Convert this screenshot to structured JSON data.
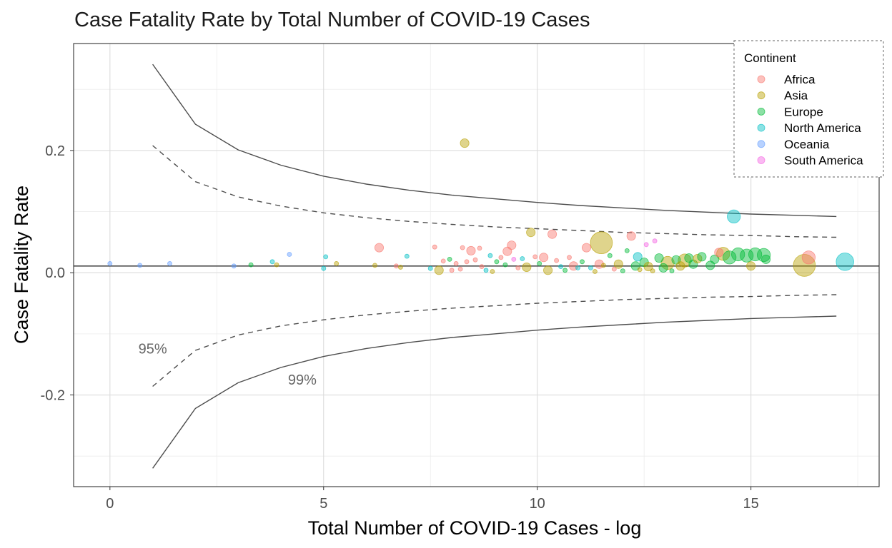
{
  "chart_data": {
    "type": "scatter",
    "title": "Case Fatality Rate by Total Number of COVID-19 Cases",
    "xlabel": "Total Number of COVID-19 Cases - log",
    "ylabel": "Case Fatality Rate",
    "xlim": [
      -0.85,
      18.0
    ],
    "ylim": [
      -0.35,
      0.375
    ],
    "x_ticks": [
      0,
      5,
      10,
      15
    ],
    "x_tick_labels": [
      "0",
      "5",
      "10",
      "15"
    ],
    "y_ticks": [
      -0.2,
      0.0,
      0.2
    ],
    "y_tick_labels": [
      "-0.2",
      "0.0",
      "0.2"
    ],
    "grid": true,
    "legend": {
      "title": "Continent",
      "position": "top-right",
      "entries": [
        {
          "name": "Africa",
          "color": "#F8766D"
        },
        {
          "name": "Asia",
          "color": "#B79F00"
        },
        {
          "name": "Europe",
          "color": "#00BA38"
        },
        {
          "name": "North America",
          "color": "#00BFC4"
        },
        {
          "name": "Oceania",
          "color": "#619CFF"
        },
        {
          "name": "South America",
          "color": "#F564E3"
        }
      ]
    },
    "reference_line": {
      "y": 0.011
    },
    "funnel": {
      "x": [
        1,
        2,
        3,
        4,
        5,
        6,
        7,
        8,
        9,
        10,
        11,
        12,
        13,
        14,
        15,
        16,
        17
      ],
      "upper_99": [
        0.341,
        0.243,
        0.201,
        0.176,
        0.158,
        0.145,
        0.135,
        0.127,
        0.121,
        0.115,
        0.11,
        0.106,
        0.102,
        0.099,
        0.096,
        0.094,
        0.092
      ],
      "lower_99": [
        -0.32,
        -0.222,
        -0.18,
        -0.155,
        -0.137,
        -0.124,
        -0.114,
        -0.106,
        -0.1,
        -0.094,
        -0.089,
        -0.085,
        -0.081,
        -0.078,
        -0.075,
        -0.073,
        -0.071
      ],
      "upper_95": [
        0.208,
        0.149,
        0.124,
        0.109,
        0.098,
        0.09,
        0.084,
        0.079,
        0.075,
        0.072,
        0.069,
        0.066,
        0.064,
        0.062,
        0.061,
        0.059,
        0.058
      ],
      "lower_95": [
        -0.186,
        -0.127,
        -0.102,
        -0.087,
        -0.077,
        -0.069,
        -0.063,
        -0.058,
        -0.054,
        -0.05,
        -0.047,
        -0.044,
        -0.042,
        -0.04,
        -0.039,
        -0.037,
        -0.036
      ]
    },
    "annotations": [
      {
        "text": "95%",
        "x": 1.0,
        "y": -0.132
      },
      {
        "text": "99%",
        "x": 4.5,
        "y": -0.183
      }
    ],
    "points": [
      {
        "x": 0.0,
        "y": 0.015,
        "continent": "Oceania",
        "size": 1
      },
      {
        "x": 0.7,
        "y": 0.012,
        "continent": "Oceania",
        "size": 1
      },
      {
        "x": 1.4,
        "y": 0.015,
        "continent": "Oceania",
        "size": 1
      },
      {
        "x": 2.9,
        "y": 0.011,
        "continent": "Oceania",
        "size": 1
      },
      {
        "x": 3.3,
        "y": 0.013,
        "continent": "Europe",
        "size": 1
      },
      {
        "x": 3.8,
        "y": 0.018,
        "continent": "North America",
        "size": 1
      },
      {
        "x": 3.9,
        "y": 0.013,
        "continent": "Asia",
        "size": 1
      },
      {
        "x": 4.2,
        "y": 0.03,
        "continent": "Oceania",
        "size": 1
      },
      {
        "x": 5.0,
        "y": 0.007,
        "continent": "North America",
        "size": 1
      },
      {
        "x": 5.05,
        "y": 0.026,
        "continent": "North America",
        "size": 1
      },
      {
        "x": 5.3,
        "y": 0.015,
        "continent": "Asia",
        "size": 1
      },
      {
        "x": 6.2,
        "y": 0.012,
        "continent": "Asia",
        "size": 1
      },
      {
        "x": 6.3,
        "y": 0.041,
        "continent": "Africa",
        "size": 2
      },
      {
        "x": 6.7,
        "y": 0.011,
        "continent": "Africa",
        "size": 1
      },
      {
        "x": 6.8,
        "y": 0.009,
        "continent": "Asia",
        "size": 1
      },
      {
        "x": 6.95,
        "y": 0.027,
        "continent": "North America",
        "size": 1
      },
      {
        "x": 7.5,
        "y": 0.007,
        "continent": "North America",
        "size": 1
      },
      {
        "x": 7.6,
        "y": 0.042,
        "continent": "Africa",
        "size": 1
      },
      {
        "x": 7.7,
        "y": 0.004,
        "continent": "Asia",
        "size": 2
      },
      {
        "x": 7.8,
        "y": 0.019,
        "continent": "Africa",
        "size": 1
      },
      {
        "x": 7.95,
        "y": 0.022,
        "continent": "Europe",
        "size": 1
      },
      {
        "x": 8.0,
        "y": 0.004,
        "continent": "Africa",
        "size": 1
      },
      {
        "x": 8.1,
        "y": 0.015,
        "continent": "Africa",
        "size": 1
      },
      {
        "x": 8.2,
        "y": 0.006,
        "continent": "Africa",
        "size": 1
      },
      {
        "x": 8.25,
        "y": 0.041,
        "continent": "Africa",
        "size": 1
      },
      {
        "x": 8.3,
        "y": 0.212,
        "continent": "Asia",
        "size": 2
      },
      {
        "x": 8.35,
        "y": 0.018,
        "continent": "Africa",
        "size": 1
      },
      {
        "x": 8.45,
        "y": 0.036,
        "continent": "Africa",
        "size": 2
      },
      {
        "x": 8.55,
        "y": 0.021,
        "continent": "Africa",
        "size": 1
      },
      {
        "x": 8.65,
        "y": 0.04,
        "continent": "Africa",
        "size": 1
      },
      {
        "x": 8.7,
        "y": 0.01,
        "continent": "Africa",
        "size": 1
      },
      {
        "x": 8.8,
        "y": 0.004,
        "continent": "North America",
        "size": 1
      },
      {
        "x": 8.9,
        "y": 0.028,
        "continent": "North America",
        "size": 1
      },
      {
        "x": 8.95,
        "y": 0.002,
        "continent": "Asia",
        "size": 1
      },
      {
        "x": 9.05,
        "y": 0.018,
        "continent": "Europe",
        "size": 1
      },
      {
        "x": 9.15,
        "y": 0.025,
        "continent": "Africa",
        "size": 1
      },
      {
        "x": 9.25,
        "y": 0.013,
        "continent": "Europe",
        "size": 1
      },
      {
        "x": 9.3,
        "y": 0.035,
        "continent": "Africa",
        "size": 2
      },
      {
        "x": 9.4,
        "y": 0.045,
        "continent": "Africa",
        "size": 2
      },
      {
        "x": 9.45,
        "y": 0.022,
        "continent": "South America",
        "size": 1
      },
      {
        "x": 9.55,
        "y": 0.008,
        "continent": "Africa",
        "size": 1
      },
      {
        "x": 9.65,
        "y": 0.023,
        "continent": "North America",
        "size": 1
      },
      {
        "x": 9.75,
        "y": 0.009,
        "continent": "Asia",
        "size": 2
      },
      {
        "x": 9.85,
        "y": 0.066,
        "continent": "Asia",
        "size": 2
      },
      {
        "x": 9.95,
        "y": 0.026,
        "continent": "Africa",
        "size": 1
      },
      {
        "x": 10.05,
        "y": 0.015,
        "continent": "Europe",
        "size": 1
      },
      {
        "x": 10.15,
        "y": 0.025,
        "continent": "Africa",
        "size": 2
      },
      {
        "x": 10.25,
        "y": 0.004,
        "continent": "Asia",
        "size": 2
      },
      {
        "x": 10.35,
        "y": 0.063,
        "continent": "Africa",
        "size": 2
      },
      {
        "x": 10.45,
        "y": 0.02,
        "continent": "Africa",
        "size": 1
      },
      {
        "x": 10.55,
        "y": 0.01,
        "continent": "North America",
        "size": 1
      },
      {
        "x": 10.65,
        "y": 0.004,
        "continent": "Europe",
        "size": 1
      },
      {
        "x": 10.75,
        "y": 0.025,
        "continent": "Africa",
        "size": 1
      },
      {
        "x": 10.85,
        "y": 0.011,
        "continent": "Africa",
        "size": 2
      },
      {
        "x": 10.95,
        "y": 0.008,
        "continent": "North America",
        "size": 1
      },
      {
        "x": 11.05,
        "y": 0.018,
        "continent": "Europe",
        "size": 1
      },
      {
        "x": 11.15,
        "y": 0.041,
        "continent": "Africa",
        "size": 2
      },
      {
        "x": 11.25,
        "y": 0.008,
        "continent": "North America",
        "size": 1
      },
      {
        "x": 11.35,
        "y": 0.002,
        "continent": "Asia",
        "size": 1
      },
      {
        "x": 11.45,
        "y": 0.014,
        "continent": "Africa",
        "size": 2
      },
      {
        "x": 11.55,
        "y": 0.012,
        "continent": "Asia",
        "size": 1
      },
      {
        "x": 11.5,
        "y": 0.049,
        "continent": "Asia",
        "size": 5
      },
      {
        "x": 11.7,
        "y": 0.028,
        "continent": "Europe",
        "size": 1
      },
      {
        "x": 11.8,
        "y": 0.006,
        "continent": "Africa",
        "size": 1
      },
      {
        "x": 11.9,
        "y": 0.014,
        "continent": "Asia",
        "size": 2
      },
      {
        "x": 12.0,
        "y": 0.003,
        "continent": "Europe",
        "size": 1
      },
      {
        "x": 12.1,
        "y": 0.036,
        "continent": "Europe",
        "size": 1
      },
      {
        "x": 12.2,
        "y": 0.06,
        "continent": "Africa",
        "size": 2
      },
      {
        "x": 12.3,
        "y": 0.011,
        "continent": "Europe",
        "size": 2
      },
      {
        "x": 12.35,
        "y": 0.026,
        "continent": "North America",
        "size": 2
      },
      {
        "x": 12.4,
        "y": 0.005,
        "continent": "Asia",
        "size": 1
      },
      {
        "x": 12.5,
        "y": 0.017,
        "continent": "Europe",
        "size": 2
      },
      {
        "x": 12.55,
        "y": 0.046,
        "continent": "South America",
        "size": 1
      },
      {
        "x": 12.6,
        "y": 0.01,
        "continent": "Asia",
        "size": 2
      },
      {
        "x": 12.7,
        "y": 0.003,
        "continent": "Asia",
        "size": 1
      },
      {
        "x": 12.75,
        "y": 0.052,
        "continent": "South America",
        "size": 1
      },
      {
        "x": 12.85,
        "y": 0.024,
        "continent": "Europe",
        "size": 2
      },
      {
        "x": 12.95,
        "y": 0.008,
        "continent": "Europe",
        "size": 2
      },
      {
        "x": 13.05,
        "y": 0.016,
        "continent": "Asia",
        "size": 3
      },
      {
        "x": 13.15,
        "y": 0.003,
        "continent": "Europe",
        "size": 1
      },
      {
        "x": 13.25,
        "y": 0.021,
        "continent": "Europe",
        "size": 2
      },
      {
        "x": 13.35,
        "y": 0.011,
        "continent": "Asia",
        "size": 2
      },
      {
        "x": 13.45,
        "y": 0.02,
        "continent": "Asia",
        "size": 3
      },
      {
        "x": 13.55,
        "y": 0.024,
        "continent": "Europe",
        "size": 2
      },
      {
        "x": 13.65,
        "y": 0.014,
        "continent": "Europe",
        "size": 2
      },
      {
        "x": 13.75,
        "y": 0.023,
        "continent": "Asia",
        "size": 2
      },
      {
        "x": 13.85,
        "y": 0.026,
        "continent": "Europe",
        "size": 2
      },
      {
        "x": 14.05,
        "y": 0.012,
        "continent": "Europe",
        "size": 2
      },
      {
        "x": 14.15,
        "y": 0.022,
        "continent": "Europe",
        "size": 2
      },
      {
        "x": 14.25,
        "y": 0.033,
        "continent": "Africa",
        "size": 2
      },
      {
        "x": 14.35,
        "y": 0.031,
        "continent": "Asia",
        "size": 3
      },
      {
        "x": 14.5,
        "y": 0.025,
        "continent": "Europe",
        "size": 3
      },
      {
        "x": 14.6,
        "y": 0.092,
        "continent": "North America",
        "size": 3
      },
      {
        "x": 14.7,
        "y": 0.03,
        "continent": "Europe",
        "size": 3
      },
      {
        "x": 14.9,
        "y": 0.028,
        "continent": "Europe",
        "size": 3
      },
      {
        "x": 15.0,
        "y": 0.011,
        "continent": "Asia",
        "size": 2
      },
      {
        "x": 15.1,
        "y": 0.03,
        "continent": "Europe",
        "size": 3
      },
      {
        "x": 15.3,
        "y": 0.029,
        "continent": "Europe",
        "size": 3
      },
      {
        "x": 15.35,
        "y": 0.022,
        "continent": "Europe",
        "size": 2
      },
      {
        "x": 16.25,
        "y": 0.012,
        "continent": "Asia",
        "size": 5
      },
      {
        "x": 16.35,
        "y": 0.025,
        "continent": "Africa",
        "size": 3
      },
      {
        "x": 17.2,
        "y": 0.018,
        "continent": "North America",
        "size": 4
      }
    ]
  }
}
